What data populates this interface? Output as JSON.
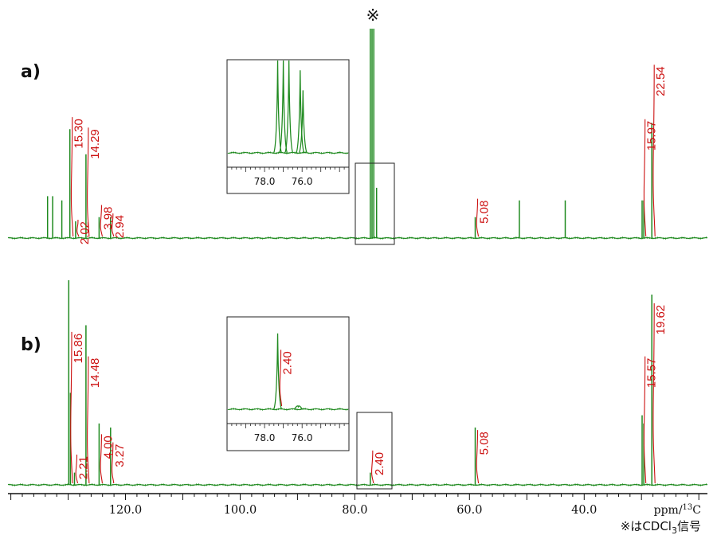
{
  "chart_data": {
    "type": "line",
    "title": "",
    "xlabel": "ppm/13C",
    "xaxis": {
      "label_main": "ppm/",
      "label_sup": "13",
      "label_nucleus": "C",
      "reversed": true,
      "range": [
        140.5,
        18.5
      ],
      "ticks": [
        120.0,
        100.0,
        80.0,
        60.0,
        40.0
      ],
      "tick_labels": [
        "120.0",
        "100.0",
        "80.0",
        "60.0",
        "40.0"
      ],
      "minor_step": 2
    },
    "note": {
      "prefix": "※は",
      "compound": "CDCl",
      "subscript": "3",
      "suffix": "信号"
    },
    "colors": {
      "trace": "#1f8a1f",
      "integral": "#cc1111",
      "axis": "#111111"
    },
    "panels": [
      {
        "id": "a",
        "label": "a)",
        "solvent_marker": "※",
        "peaks": [
          {
            "ppm": 133.6,
            "h": 0.2
          },
          {
            "ppm": 132.7,
            "h": 0.2
          },
          {
            "ppm": 131.1,
            "h": 0.18
          },
          {
            "ppm": 129.7,
            "h": 0.52
          },
          {
            "ppm": 128.7,
            "h": 0.08
          },
          {
            "ppm": 126.9,
            "h": 0.4
          },
          {
            "ppm": 124.6,
            "h": 0.1
          },
          {
            "ppm": 122.6,
            "h": 0.1
          },
          {
            "ppm": 77.3,
            "h": 1.1
          },
          {
            "ppm": 77.0,
            "h": 1.1
          },
          {
            "ppm": 76.7,
            "h": 1.1
          },
          {
            "ppm": 76.2,
            "h": 0.24
          },
          {
            "ppm": 59.0,
            "h": 0.1
          },
          {
            "ppm": 51.3,
            "h": 0.18
          },
          {
            "ppm": 43.3,
            "h": 0.18
          },
          {
            "ppm": 29.9,
            "h": 0.18
          },
          {
            "ppm": 29.6,
            "h": 0.18
          },
          {
            "ppm": 28.2,
            "h": 0.55
          }
        ],
        "integrals": [
          {
            "ppm": 129.7,
            "label": "15.30",
            "rise": 0.57
          },
          {
            "ppm": 128.7,
            "label": "2.02",
            "rise": 0.08
          },
          {
            "ppm": 126.9,
            "label": "14.29",
            "rise": 0.52
          },
          {
            "ppm": 124.6,
            "label": "3.98",
            "rise": 0.15
          },
          {
            "ppm": 122.6,
            "label": "2.94",
            "rise": 0.11
          },
          {
            "ppm": 59.0,
            "label": "5.08",
            "rise": 0.18
          },
          {
            "ppm": 29.8,
            "label": "15.97",
            "rise": 0.56
          },
          {
            "ppm": 28.2,
            "label": "22.54",
            "rise": 0.82
          }
        ],
        "inset": {
          "tick_labels": [
            "78.0",
            "76.0"
          ],
          "tick_values": [
            78.0,
            76.0
          ],
          "range": [
            80.0,
            73.5
          ],
          "peaks": [
            {
              "ppm": 77.3,
              "h": 1.6
            },
            {
              "ppm": 77.0,
              "h": 1.6
            },
            {
              "ppm": 76.7,
              "h": 1.6
            },
            {
              "ppm": 76.1,
              "h": 0.95
            },
            {
              "ppm": 75.95,
              "h": 0.72
            }
          ],
          "integrals": []
        }
      },
      {
        "id": "b",
        "label": "b)",
        "solvent_marker": "",
        "peaks": [
          {
            "ppm": 129.9,
            "h": 1.0
          },
          {
            "ppm": 129.6,
            "h": 0.45
          },
          {
            "ppm": 128.9,
            "h": 0.06
          },
          {
            "ppm": 126.9,
            "h": 0.78
          },
          {
            "ppm": 124.6,
            "h": 0.3
          },
          {
            "ppm": 122.6,
            "h": 0.28
          },
          {
            "ppm": 77.3,
            "h": 0.06
          },
          {
            "ppm": 59.0,
            "h": 0.28
          },
          {
            "ppm": 29.9,
            "h": 0.34
          },
          {
            "ppm": 29.6,
            "h": 0.3
          },
          {
            "ppm": 28.2,
            "h": 0.93
          }
        ],
        "integrals": [
          {
            "ppm": 129.8,
            "label": "15.86",
            "rise": 0.74
          },
          {
            "ppm": 128.9,
            "label": "2.21",
            "rise": 0.14
          },
          {
            "ppm": 126.9,
            "label": "14.48",
            "rise": 0.62
          },
          {
            "ppm": 124.6,
            "label": "4.00",
            "rise": 0.24
          },
          {
            "ppm": 122.6,
            "label": "3.27",
            "rise": 0.2
          },
          {
            "ppm": 77.3,
            "label": "2.40",
            "rise": 0.16
          },
          {
            "ppm": 59.0,
            "label": "5.08",
            "rise": 0.26
          },
          {
            "ppm": 29.8,
            "label": "15.57",
            "rise": 0.62
          },
          {
            "ppm": 28.2,
            "label": "19.62",
            "rise": 0.88
          }
        ],
        "inset": {
          "tick_labels": [
            "78.0",
            "76.0"
          ],
          "tick_values": [
            78.0,
            76.0
          ],
          "range": [
            80.0,
            73.5
          ],
          "peaks": [
            {
              "ppm": 77.3,
              "h": 0.88
            },
            {
              "ppm": 76.2,
              "h": 0.03
            }
          ],
          "integrals": [
            {
              "ppm": 77.3,
              "label": "2.40",
              "rise": 0.62
            }
          ]
        }
      }
    ]
  }
}
